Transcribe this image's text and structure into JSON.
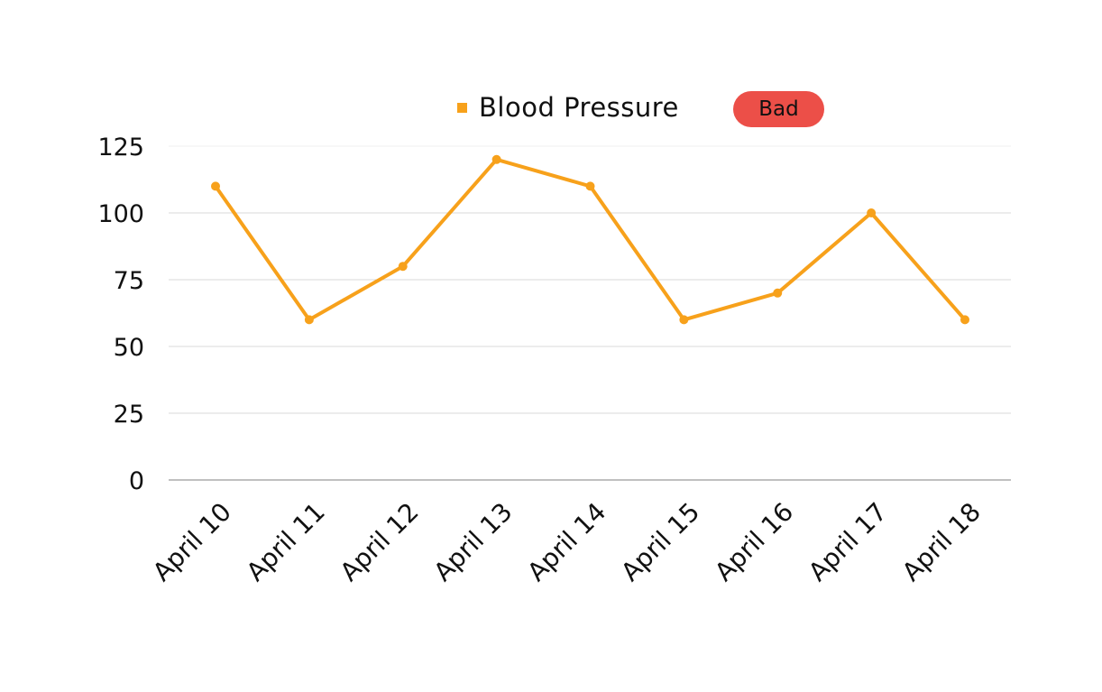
{
  "chart_data": {
    "type": "line",
    "title": "",
    "xlabel": "",
    "ylabel": "",
    "categories": [
      "April 10",
      "April 11",
      "April 12",
      "April 13",
      "April 14",
      "April 15",
      "April 16",
      "April 17",
      "April 18"
    ],
    "series": [
      {
        "name": "Blood Pressure",
        "values": [
          110,
          60,
          80,
          120,
          110,
          60,
          70,
          100,
          60
        ],
        "color": "#F7A11B"
      }
    ],
    "yticks": [
      0,
      25,
      50,
      75,
      100,
      125
    ],
    "ytick_labels": [
      "0",
      "25",
      "50",
      "75",
      "100",
      "125"
    ],
    "ylim": [
      0,
      125
    ],
    "grid": "horizontal",
    "legend_position": "top-center",
    "markers": true
  },
  "status_badge": {
    "label": "Bad",
    "color": "#EC4F48"
  },
  "colors": {
    "gridline": "#D9D9D9",
    "axis": "#9A9A9A",
    "text": "#111111"
  }
}
